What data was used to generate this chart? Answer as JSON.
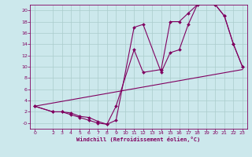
{
  "title": "",
  "xlabel": "Windchill (Refroidissement éolien,°C)",
  "bg_color": "#cce8ec",
  "grid_color": "#aacccc",
  "line_color": "#800060",
  "xlim": [
    -0.5,
    23.5
  ],
  "ylim": [
    -1.0,
    21.0
  ],
  "yticks": [
    0,
    2,
    4,
    6,
    8,
    10,
    12,
    14,
    16,
    18,
    20
  ],
  "xticks": [
    0,
    2,
    3,
    4,
    5,
    6,
    7,
    8,
    9,
    10,
    11,
    12,
    13,
    14,
    15,
    16,
    17,
    18,
    19,
    20,
    21,
    22,
    23
  ],
  "line1_x": [
    0,
    2,
    3,
    4,
    5,
    6,
    7,
    8,
    9,
    11,
    12,
    14,
    15,
    16,
    17,
    18,
    19,
    20,
    21,
    22,
    23
  ],
  "line1_y": [
    3.0,
    2.0,
    2.0,
    1.5,
    1.0,
    0.5,
    0.0,
    -0.2,
    0.5,
    17.0,
    17.5,
    9.0,
    12.5,
    13.0,
    17.5,
    21.0,
    21.5,
    21.0,
    19.0,
    14.0,
    10.0
  ],
  "line2_x": [
    0,
    2,
    3,
    4,
    5,
    6,
    7,
    8,
    9,
    11,
    12,
    14,
    15,
    16,
    17,
    18,
    19,
    20,
    21,
    22,
    23
  ],
  "line2_y": [
    3.0,
    2.0,
    2.0,
    1.8,
    1.2,
    1.0,
    0.3,
    -0.2,
    3.0,
    13.0,
    9.0,
    9.5,
    18.0,
    18.0,
    19.5,
    21.0,
    21.5,
    21.0,
    19.0,
    14.0,
    10.0
  ],
  "line3_x": [
    0,
    23
  ],
  "line3_y": [
    3.0,
    9.5
  ]
}
